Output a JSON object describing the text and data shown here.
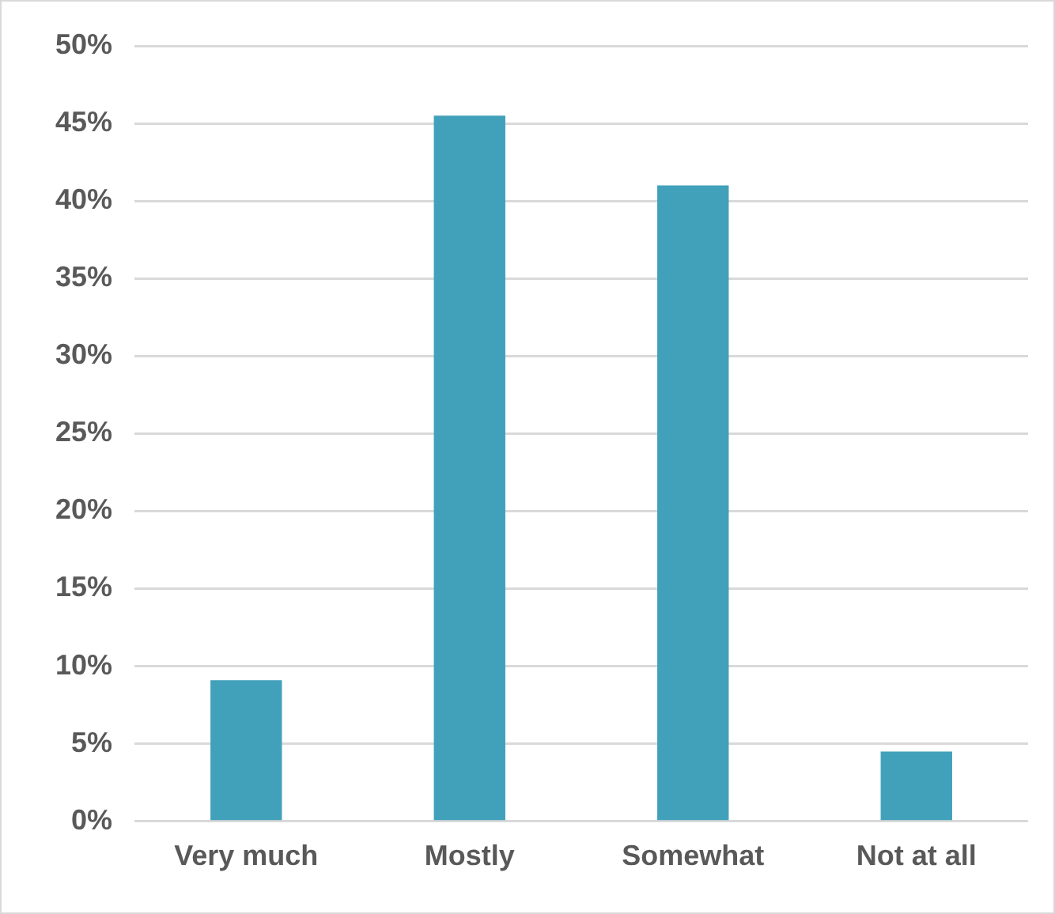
{
  "chart_data": {
    "type": "bar",
    "categories": [
      "Very much",
      "Mostly",
      "Somewhat",
      "Not at all"
    ],
    "values": [
      9.1,
      45.5,
      41,
      4.5
    ],
    "color": "#42a1ba",
    "ylim": [
      0,
      50
    ],
    "yticks": [
      {
        "value": 0,
        "label": "0%"
      },
      {
        "value": 5,
        "label": "5%"
      },
      {
        "value": 10,
        "label": "10%"
      },
      {
        "value": 15,
        "label": "15%"
      },
      {
        "value": 20,
        "label": "20%"
      },
      {
        "value": 25,
        "label": "25%"
      },
      {
        "value": 30,
        "label": "30%"
      },
      {
        "value": 35,
        "label": "35%"
      },
      {
        "value": 40,
        "label": "40%"
      },
      {
        "value": 45,
        "label": "45%"
      },
      {
        "value": 50,
        "label": "50%"
      }
    ],
    "grid": "y",
    "legend": false
  }
}
